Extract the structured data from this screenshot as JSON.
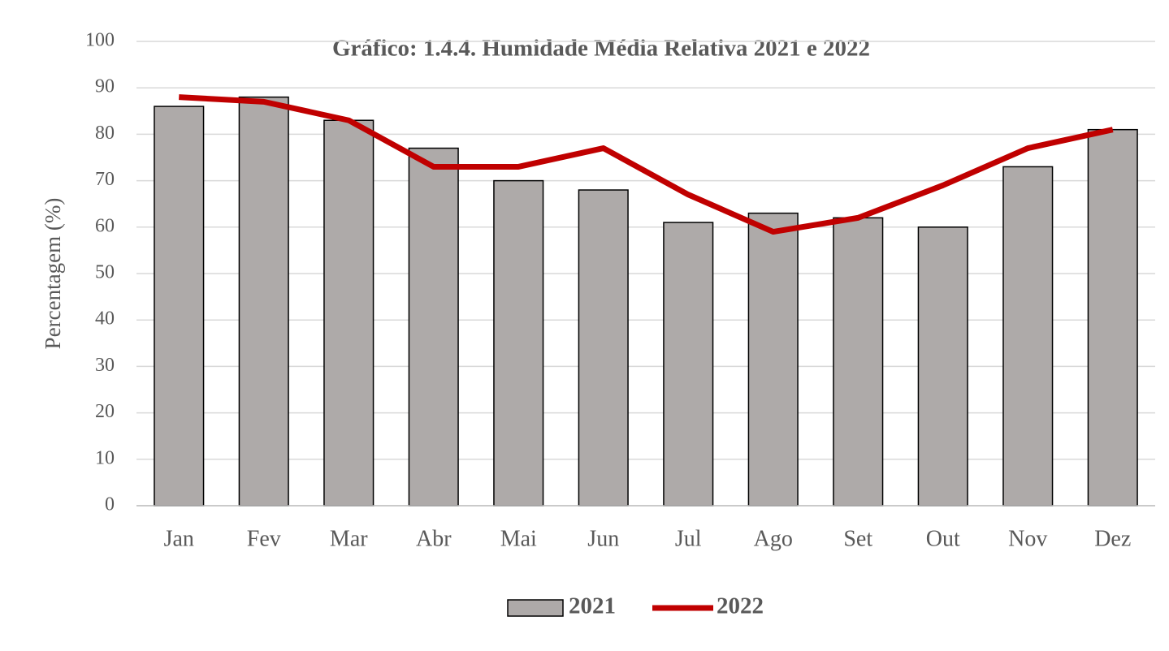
{
  "chart_data": {
    "type": "bar_line",
    "title": "Gráfico: 1.4.4. Humidade Média Relativa  2021 e 2022",
    "y_label": "Percentagem (%)",
    "categories": [
      "Jan",
      "Fev",
      "Mar",
      "Abr",
      "Mai",
      "Jun",
      "Jul",
      "Ago",
      "Set",
      "Out",
      "Nov",
      "Dez"
    ],
    "series": [
      {
        "name": "2021",
        "type": "bar",
        "color": "#aeaaa9",
        "values": [
          86,
          88,
          83,
          77,
          70,
          68,
          61,
          63,
          62,
          60,
          73,
          81
        ]
      },
      {
        "name": "2022",
        "type": "line",
        "color": "#c00000",
        "values": [
          88,
          87,
          83,
          73,
          73,
          77,
          67,
          59,
          62,
          69,
          77,
          81
        ]
      }
    ],
    "ylim": [
      0,
      100
    ],
    "yticks": [
      0,
      10,
      20,
      30,
      40,
      50,
      60,
      70,
      80,
      90,
      100
    ],
    "grid": true,
    "legend": "bottom"
  }
}
